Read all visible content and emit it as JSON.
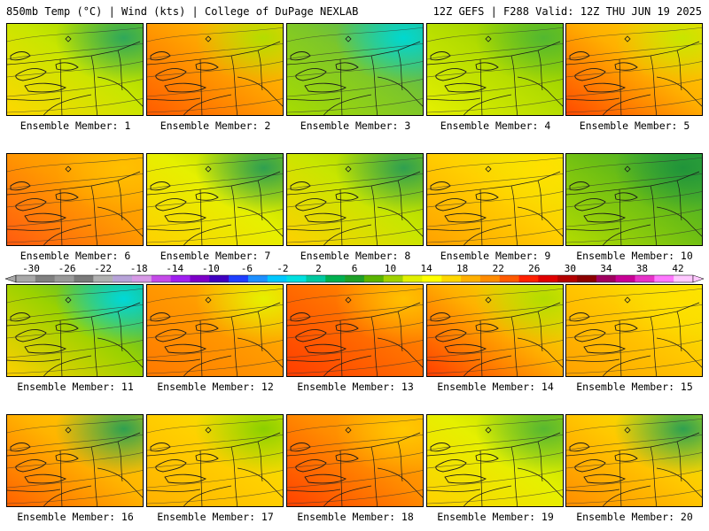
{
  "header": {
    "left": "850mb Temp (°C) | Wind (kts) | College of DuPage NEXLAB",
    "right": "12Z GEFS | F288 Valid: 12Z THU JUN 19 2025"
  },
  "colorbar": {
    "labels": [
      "-30",
      "-26",
      "-22",
      "-18",
      "-14",
      "-10",
      "-6",
      "-2",
      "2",
      "6",
      "10",
      "14",
      "18",
      "22",
      "26",
      "30",
      "34",
      "38",
      "42"
    ],
    "colors": [
      "#a8a8a8",
      "#808080",
      "#9a9a9a",
      "#7a7a7a",
      "#b0b0b0",
      "#b7a3d8",
      "#d79ae6",
      "#c44ae8",
      "#a020f0",
      "#7d00c8",
      "#4000c0",
      "#1f3fff",
      "#1e90ff",
      "#00c8ff",
      "#00e0e0",
      "#00c8a0",
      "#00b050",
      "#1ea028",
      "#5ab400",
      "#a0d200",
      "#e1f000",
      "#ffff00",
      "#ffd700",
      "#ffb000",
      "#ff8c00",
      "#ff5a00",
      "#ff2000",
      "#e00000",
      "#b40000",
      "#8c0000",
      "#a00060",
      "#c80096",
      "#e632c8",
      "#ff78ff",
      "#ffc8ff"
    ]
  },
  "members": [
    {
      "label": "Ensemble Member: 1",
      "base": "#c8e600",
      "hot": "#ffd700",
      "cool": "#8ccf00",
      "edge": "#2fa85a"
    },
    {
      "label": "Ensemble Member: 2",
      "base": "#ffa000",
      "hot": "#ff5a00",
      "cool": "#ffd000",
      "edge": "#b4dc00"
    },
    {
      "label": "Ensemble Member: 3",
      "base": "#7cc62a",
      "hot": "#a8dc00",
      "cool": "#3bb07a",
      "edge": "#00d8d0"
    },
    {
      "label": "Ensemble Member: 4",
      "base": "#b2dc00",
      "hot": "#e6f000",
      "cool": "#80c800",
      "edge": "#52b830"
    },
    {
      "label": "Ensemble Member: 5",
      "base": "#ffb000",
      "hot": "#ff4800",
      "cool": "#ffd400",
      "edge": "#c8e600"
    },
    {
      "label": "Ensemble Member: 6",
      "base": "#ff9a00",
      "hot": "#ff5a10",
      "cool": "#ffb400",
      "edge": "#ffc000"
    },
    {
      "label": "Ensemble Member: 7",
      "base": "#e6f000",
      "hot": "#ffd000",
      "cool": "#9ad200",
      "edge": "#2fa050"
    },
    {
      "label": "Ensemble Member: 8",
      "base": "#c8e600",
      "hot": "#ffd000",
      "cool": "#98d000",
      "edge": "#2fa050"
    },
    {
      "label": "Ensemble Member: 9",
      "base": "#ffd000",
      "hot": "#ffa000",
      "cool": "#e6f000",
      "edge": "#ffe000"
    },
    {
      "label": "Ensemble Member: 10",
      "base": "#6cbe14",
      "hot": "#b4dc00",
      "cool": "#32a83c",
      "edge": "#20943a"
    },
    {
      "label": "Ensemble Member: 11",
      "base": "#9ad200",
      "hot": "#ffd000",
      "cool": "#2aaa60",
      "edge": "#00d8d8"
    },
    {
      "label": "Ensemble Member: 12",
      "base": "#ff9a00",
      "hot": "#ff7800",
      "cool": "#ffc000",
      "edge": "#e6f000"
    },
    {
      "label": "Ensemble Member: 13",
      "base": "#ff7000",
      "hot": "#ff3c00",
      "cool": "#ff9a00",
      "edge": "#ffc000"
    },
    {
      "label": "Ensemble Member: 14",
      "base": "#ffb000",
      "hot": "#ff3c00",
      "cool": "#e6f000",
      "edge": "#b4dc00"
    },
    {
      "label": "Ensemble Member: 15",
      "base": "#ffc800",
      "hot": "#ffa000",
      "cool": "#f0f000",
      "edge": "#ffe000"
    },
    {
      "label": "Ensemble Member: 16",
      "base": "#ffb400",
      "hot": "#ff6000",
      "cool": "#ffd400",
      "edge": "#2fa050"
    },
    {
      "label": "Ensemble Member: 17",
      "base": "#ffd000",
      "hot": "#ffb000",
      "cool": "#e6f000",
      "edge": "#8ccf00"
    },
    {
      "label": "Ensemble Member: 18",
      "base": "#ff8c00",
      "hot": "#ff4000",
      "cool": "#ffb000",
      "edge": "#ffc800"
    },
    {
      "label": "Ensemble Member: 19",
      "base": "#e6f000",
      "hot": "#ffd000",
      "cool": "#a8d800",
      "edge": "#58b830"
    },
    {
      "label": "Ensemble Member: 20",
      "base": "#ffc800",
      "hot": "#ff8c00",
      "cool": "#e6f000",
      "edge": "#2fa050"
    }
  ]
}
